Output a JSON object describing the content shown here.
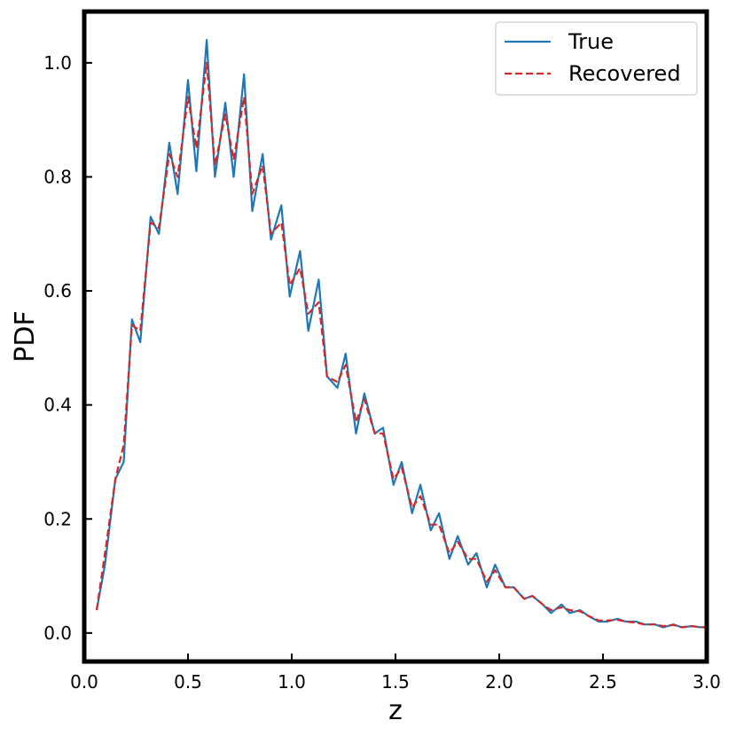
{
  "chart_data": {
    "type": "line",
    "xlabel": "z",
    "ylabel": "PDF",
    "xlim": [
      0.0,
      3.0
    ],
    "ylim": [
      -0.05,
      1.09
    ],
    "xticks": [
      0.0,
      0.5,
      1.0,
      1.5,
      2.0,
      2.5,
      3.0
    ],
    "xtick_labels": [
      "0.0",
      "0.5",
      "1.0",
      "1.5",
      "2.0",
      "2.5",
      "3.0"
    ],
    "yticks": [
      0.0,
      0.2,
      0.4,
      0.6,
      0.8,
      1.0
    ],
    "ytick_labels": [
      "0.0",
      "0.2",
      "0.4",
      "0.6",
      "0.8",
      "1.0"
    ],
    "grid": false,
    "legend": {
      "placement": "top-right"
    },
    "x": [
      0.06,
      0.1,
      0.15,
      0.19,
      0.23,
      0.27,
      0.32,
      0.36,
      0.41,
      0.45,
      0.5,
      0.54,
      0.59,
      0.63,
      0.68,
      0.72,
      0.77,
      0.81,
      0.86,
      0.9,
      0.95,
      0.99,
      1.04,
      1.08,
      1.13,
      1.17,
      1.22,
      1.26,
      1.31,
      1.35,
      1.4,
      1.44,
      1.49,
      1.53,
      1.58,
      1.62,
      1.67,
      1.71,
      1.76,
      1.8,
      1.85,
      1.89,
      1.94,
      1.98,
      2.03,
      2.07,
      2.12,
      2.16,
      2.21,
      2.25,
      2.3,
      2.34,
      2.39,
      2.43,
      2.48,
      2.52,
      2.57,
      2.61,
      2.66,
      2.7,
      2.75,
      2.79,
      2.84,
      2.88,
      2.93,
      2.97,
      3.0
    ],
    "series": [
      {
        "name": "True",
        "color": "#1f77b4",
        "style": "solid",
        "values": [
          0.04,
          0.12,
          0.27,
          0.3,
          0.55,
          0.51,
          0.73,
          0.7,
          0.86,
          0.77,
          0.97,
          0.81,
          1.04,
          0.8,
          0.93,
          0.8,
          0.98,
          0.74,
          0.84,
          0.69,
          0.75,
          0.59,
          0.67,
          0.53,
          0.62,
          0.45,
          0.43,
          0.49,
          0.35,
          0.42,
          0.35,
          0.36,
          0.26,
          0.3,
          0.21,
          0.26,
          0.18,
          0.21,
          0.13,
          0.17,
          0.12,
          0.14,
          0.08,
          0.12,
          0.08,
          0.08,
          0.06,
          0.065,
          0.05,
          0.035,
          0.05,
          0.035,
          0.04,
          0.03,
          0.02,
          0.02,
          0.025,
          0.02,
          0.02,
          0.015,
          0.015,
          0.01,
          0.015,
          0.01,
          0.012,
          0.01,
          0.01
        ]
      },
      {
        "name": "Recovered",
        "color": "#d62728",
        "style": "dashed",
        "values": [
          0.04,
          0.14,
          0.27,
          0.33,
          0.54,
          0.53,
          0.72,
          0.71,
          0.84,
          0.8,
          0.94,
          0.85,
          1.0,
          0.82,
          0.91,
          0.83,
          0.94,
          0.77,
          0.82,
          0.7,
          0.72,
          0.61,
          0.64,
          0.56,
          0.58,
          0.45,
          0.44,
          0.47,
          0.37,
          0.41,
          0.35,
          0.35,
          0.27,
          0.29,
          0.22,
          0.24,
          0.19,
          0.19,
          0.14,
          0.16,
          0.13,
          0.13,
          0.09,
          0.11,
          0.08,
          0.08,
          0.06,
          0.065,
          0.05,
          0.04,
          0.045,
          0.04,
          0.038,
          0.03,
          0.022,
          0.022,
          0.023,
          0.02,
          0.018,
          0.015,
          0.015,
          0.012,
          0.014,
          0.01,
          0.012,
          0.01,
          0.01
        ]
      }
    ]
  }
}
